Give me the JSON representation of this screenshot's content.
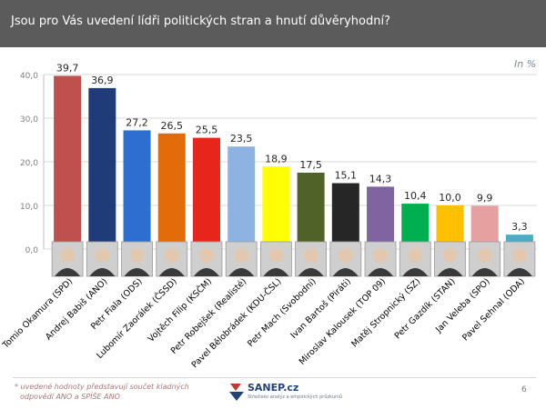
{
  "header": {
    "title": "Jsou pro Vás uvedení lídři politických stran a hnutí důvěryhodní?"
  },
  "unit_label": "In %",
  "colors": {
    "header_bg": "#5b5b5b",
    "grid": "#d9d9d9"
  },
  "chart_data": {
    "type": "bar",
    "title": "Jsou pro Vás uvedení lídři politických stran a hnutí důvěryhodní?",
    "categories": [
      "Tomio Okamura (SPD)",
      "Andrej Babiš (ANO)",
      "Petr Fiala (ODS)",
      "Lubomír Zaorálek (ČSSD)",
      "Vojtěch Filip (KSČM)",
      "Petr Robejšek (Realisté)",
      "Pavel Bělobrádek (KDU-ČSL)",
      "Petr Mach (Svobodní)",
      "Ivan Bartoš (Piráti)",
      "Miroslav Kalousek (TOP 09)",
      "Matěj Stropnický (SZ)",
      "Petr Gazdík (STAN)",
      "Jan Veleba (SPO)",
      "Pavel Sehnal (ODA)"
    ],
    "values": [
      39.7,
      36.9,
      27.2,
      26.5,
      25.5,
      23.5,
      18.9,
      17.5,
      15.1,
      14.3,
      10.4,
      10.0,
      9.9,
      3.3
    ],
    "value_labels": [
      "39,7",
      "36,9",
      "27,2",
      "26,5",
      "25,5",
      "23,5",
      "18,9",
      "17,5",
      "15,1",
      "14,3",
      "10,4",
      "10,0",
      "9,9",
      "3,3"
    ],
    "bar_colors": [
      "#c0504d",
      "#1f3c78",
      "#2c6fd1",
      "#e36c0a",
      "#e8251b",
      "#8db3e2",
      "#ffff00",
      "#4f6228",
      "#262626",
      "#8064a2",
      "#00b050",
      "#ffc000",
      "#e6a0a0",
      "#4bacc6"
    ],
    "ylim": [
      0,
      40
    ],
    "yticks": [
      0,
      10,
      20,
      30,
      40
    ],
    "ytick_labels": [
      "0,0",
      "10,0",
      "20,0",
      "30,0",
      "40,0"
    ],
    "grid": true,
    "xlabel": "",
    "ylabel": ""
  },
  "footnote": {
    "line1": "* uvedené hodnoty představují součet kladných",
    "line2": "odpovědí ANO a SPÍŠE ANO"
  },
  "logo": {
    "brand": "SANEP.cz",
    "tagline": "Středisko analýz a empirických průzkumů"
  },
  "page_number": "6"
}
